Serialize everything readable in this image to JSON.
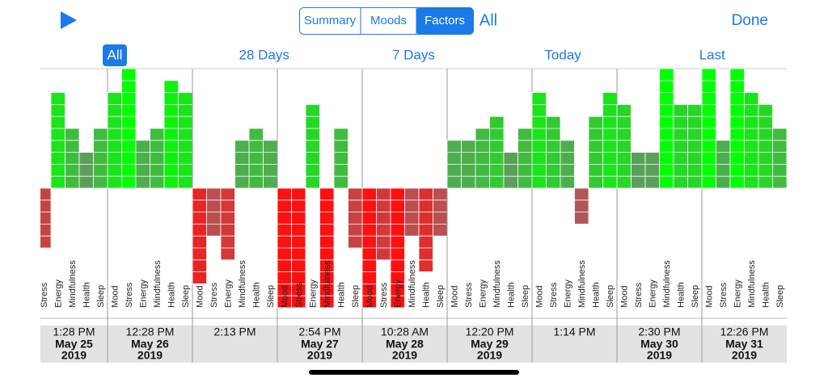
{
  "header": {
    "segments": [
      "Summary",
      "Moods",
      "Factors"
    ],
    "selected_segment": 2,
    "filter": "All",
    "done": "Done"
  },
  "ranges": [
    "All",
    "28 Days",
    "7 Days",
    "Today",
    "Last"
  ],
  "selected_range": 0,
  "chart_data": {
    "type": "bar",
    "factors": [
      "Mood",
      "Stress",
      "Energy",
      "Mindfulness",
      "Health",
      "Sleep"
    ],
    "entries": [
      {
        "time": "1:28 PM",
        "date": "May 25",
        "year": "2019",
        "values": [
          null,
          -5,
          8,
          5,
          3,
          5
        ]
      },
      {
        "time": "12:28 PM",
        "date": "May 26",
        "year": "2019",
        "values": [
          8,
          10,
          4,
          5,
          9,
          8
        ]
      },
      {
        "time": "2:13 PM",
        "date": null,
        "year": null,
        "values": [
          -8,
          -4,
          -6,
          4,
          5,
          4
        ]
      },
      {
        "time": "2:54 PM",
        "date": "May 27",
        "year": "2019",
        "values": [
          -10,
          -10,
          7,
          -10,
          5,
          -5
        ]
      },
      {
        "time": "10:28 AM",
        "date": "May 28",
        "year": "2019",
        "values": [
          -10,
          -6,
          -10,
          -4,
          -7,
          -4
        ]
      },
      {
        "time": "12:20 PM",
        "date": "May 29",
        "year": "2019",
        "values": [
          4,
          4,
          5,
          6,
          3,
          5
        ]
      },
      {
        "time": "1:14 PM",
        "date": null,
        "year": null,
        "values": [
          8,
          6,
          4,
          -3,
          6,
          8
        ]
      },
      {
        "time": "2:30 PM",
        "date": "May 30",
        "year": "2019",
        "values": [
          7,
          3,
          3,
          10,
          7,
          7
        ]
      },
      {
        "time": "12:26 PM",
        "date": "May 31",
        "year": "2019",
        "values": [
          10,
          4,
          10,
          8,
          7,
          5
        ]
      }
    ]
  }
}
